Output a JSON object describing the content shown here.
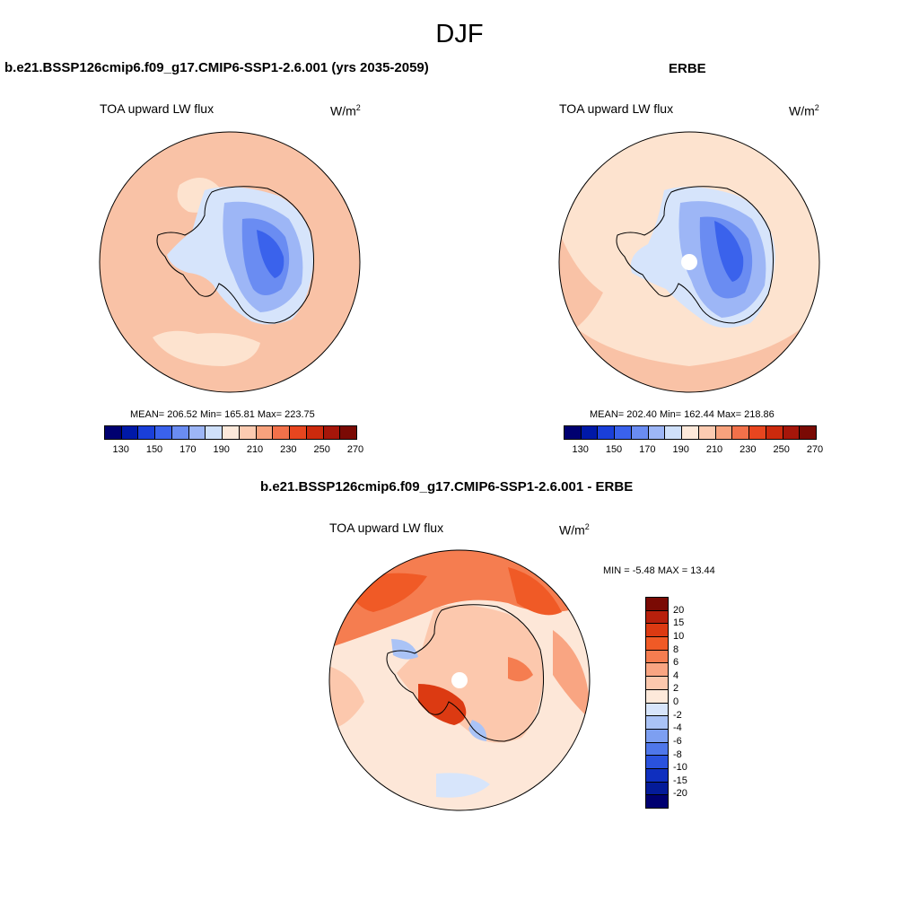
{
  "figure": {
    "title": "DJF"
  },
  "panels": {
    "model": {
      "title": "b.e21.BSSP126cmip6.f09_g17.CMIP6-SSP1-2.6.001 (yrs 2035-2059)",
      "field": "TOA upward LW flux",
      "units": "W/m",
      "units_sup": "2",
      "stats": "MEAN= 206.52  Min= 165.81  Max= 223.75"
    },
    "obs": {
      "title": "ERBE",
      "field": "TOA upward LW flux",
      "units": "W/m",
      "units_sup": "2",
      "stats": "MEAN= 202.40  Min= 162.44  Max= 218.86"
    },
    "diff": {
      "title": "b.e21.BSSP126cmip6.f09_g17.CMIP6-SSP1-2.6.001 - ERBE",
      "field": "TOA upward LW flux",
      "units": "W/m",
      "units_sup": "2",
      "stats": "MIN =  -5.48 MAX =  13.44"
    }
  },
  "colors": {
    "main_bar": [
      "#000070",
      "#0019a8",
      "#1a3fd9",
      "#3a62ec",
      "#6a8cf2",
      "#9db6f6",
      "#cfe0fa",
      "#fde9da",
      "#fccbb1",
      "#f8a27d",
      "#f2714a",
      "#e8461f",
      "#cc2a0d",
      "#a6160a",
      "#7a0a04"
    ],
    "diff_bar": [
      "#7a0a04",
      "#b8200c",
      "#dc3a12",
      "#f05a26",
      "#f57d50",
      "#f9a582",
      "#fcc8ad",
      "#fde9da",
      "#d7e5fb",
      "#aac3f6",
      "#7d9ff1",
      "#4f77ea",
      "#2a52dd",
      "#0f2fbf",
      "#041b99",
      "#000070"
    ],
    "ocean_model": "#f9c2a6",
    "ocean_obs": "#fde3cf",
    "ocean_diff": "#fde7d8"
  },
  "chart_data": [
    {
      "type": "heatmap",
      "title": "TOA upward LW flux",
      "projection": "south-polar-stereographic",
      "units": "W/m2",
      "mean": 206.52,
      "min": 165.81,
      "max": 223.75,
      "colorbar_levels": [
        130,
        140,
        150,
        160,
        170,
        180,
        190,
        200,
        210,
        220,
        230,
        240,
        250,
        260,
        270
      ],
      "colorbar_tick_labels": [
        "130",
        "150",
        "170",
        "190",
        "210",
        "230",
        "250",
        "270"
      ]
    },
    {
      "type": "heatmap",
      "title": "TOA upward LW flux",
      "projection": "south-polar-stereographic",
      "units": "W/m2",
      "mean": 202.4,
      "min": 162.44,
      "max": 218.86,
      "colorbar_levels": [
        130,
        140,
        150,
        160,
        170,
        180,
        190,
        200,
        210,
        220,
        230,
        240,
        250,
        260,
        270
      ],
      "colorbar_tick_labels": [
        "130",
        "150",
        "170",
        "190",
        "210",
        "230",
        "250",
        "270"
      ]
    },
    {
      "type": "heatmap",
      "title": "TOA upward LW flux",
      "projection": "south-polar-stereographic",
      "units": "W/m2",
      "min": -5.48,
      "max": 13.44,
      "colorbar_tick_labels": [
        "20",
        "15",
        "10",
        "8",
        "6",
        "4",
        "2",
        "0",
        "-2",
        "-4",
        "-6",
        "-8",
        "-10",
        "-15",
        "-20"
      ]
    }
  ]
}
